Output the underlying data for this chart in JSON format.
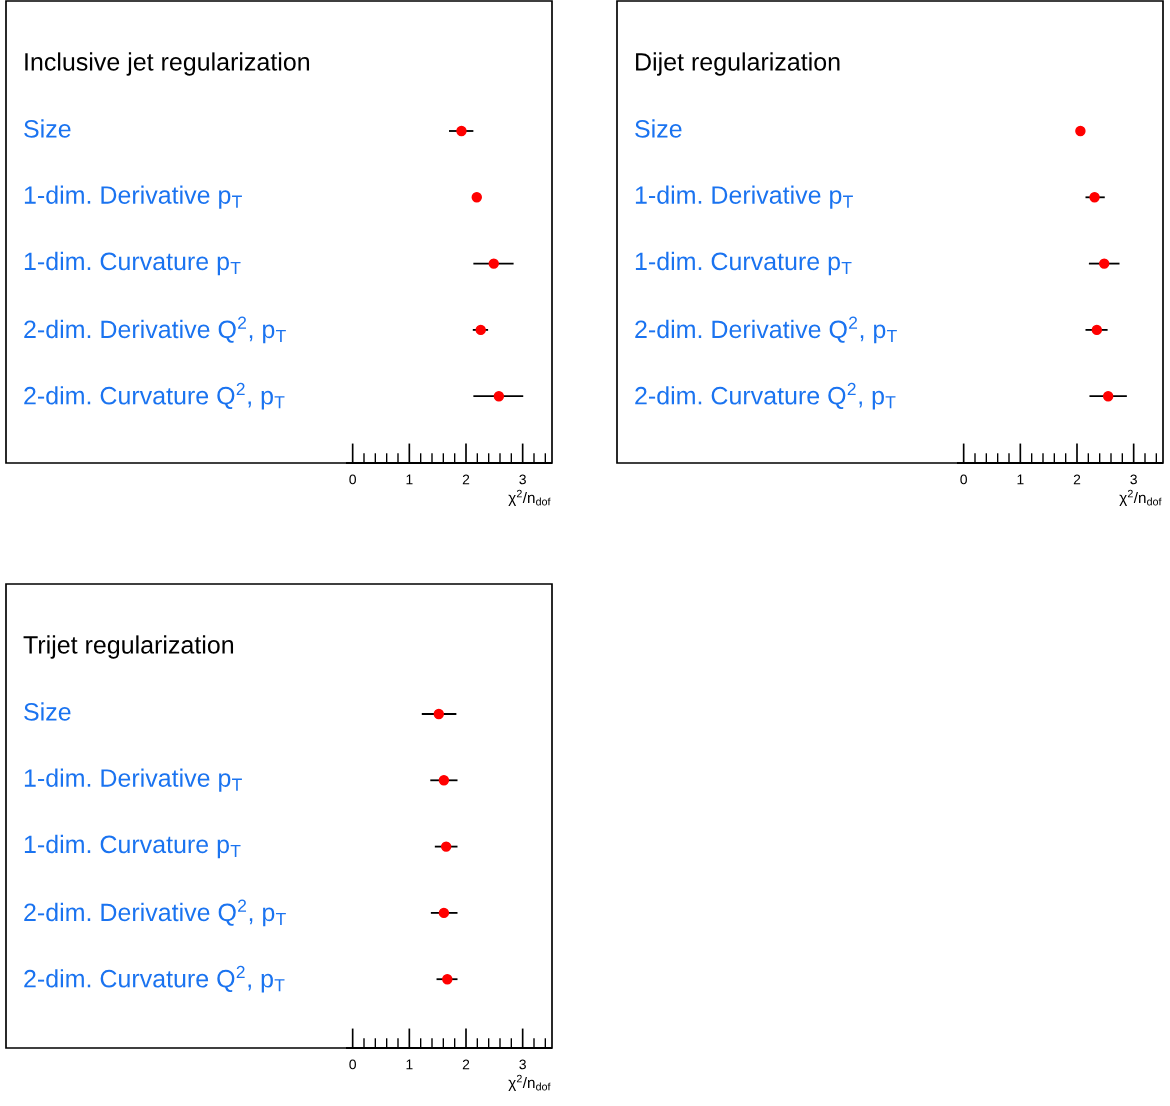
{
  "chart_data": [
    {
      "type": "scatter",
      "orientation": "horizontal",
      "title": "Inclusive jet regularization",
      "xlabel": "χ$^{2}$/n$_{dof}$",
      "categories": [
        "Size",
        "1-dim. Derivative p$_{T}$",
        "1-dim. Curvature p$_{T}$",
        "2-dim. Derivative Q$^{2}$, p$_{T}$",
        "2-dim. Curvature Q$^{2}$, p$_{T}$"
      ],
      "series": [
        {
          "color": "#ff0000",
          "values": [
            1.92,
            2.19,
            2.49,
            2.26,
            2.58
          ],
          "errors": [
            [
              1.7,
              2.13
            ],
            null,
            [
              2.13,
              2.84
            ],
            [
              2.12,
              2.39
            ],
            [
              2.13,
              3.01
            ]
          ]
        }
      ],
      "xlim": [
        -0.1,
        3.5
      ],
      "xticks": [
        0,
        1,
        2,
        3
      ],
      "marker": "circle",
      "grid": false
    },
    {
      "type": "scatter",
      "orientation": "horizontal",
      "title": "Dijet regularization",
      "xlabel": "χ$^{2}$/n$_{dof}$",
      "categories": [
        "Size",
        "1-dim. Derivative p$_{T}$",
        "1-dim. Curvature p$_{T}$",
        "2-dim. Derivative Q$^{2}$, p$_{T}$",
        "2-dim. Curvature Q$^{2}$, p$_{T}$"
      ],
      "series": [
        {
          "color": "#ff0000",
          "values": [
            2.06,
            2.31,
            2.48,
            2.35,
            2.55
          ],
          "errors": [
            null,
            [
              2.15,
              2.49
            ],
            [
              2.21,
              2.75
            ],
            [
              2.15,
              2.54
            ],
            [
              2.22,
              2.88
            ]
          ]
        }
      ],
      "xlim": [
        -0.1,
        3.5
      ],
      "xticks": [
        0,
        1,
        2,
        3
      ],
      "marker": "circle",
      "grid": false
    },
    {
      "type": "scatter",
      "orientation": "horizontal",
      "title": "Trijet regularization",
      "xlabel": "χ$^{2}$/n$_{dof}$",
      "categories": [
        "Size",
        "1-dim. Derivative p$_{T}$",
        "1-dim. Curvature p$_{T}$",
        "2-dim. Derivative Q$^{2}$, p$_{T}$",
        "2-dim. Curvature Q$^{2}$, p$_{T}$"
      ],
      "series": [
        {
          "color": "#ff0000",
          "values": [
            1.52,
            1.61,
            1.65,
            1.61,
            1.67
          ],
          "errors": [
            [
              1.22,
              1.83
            ],
            [
              1.37,
              1.85
            ],
            [
              1.45,
              1.85
            ],
            [
              1.38,
              1.85
            ],
            [
              1.48,
              1.85
            ]
          ]
        }
      ],
      "xlim": [
        -0.1,
        3.5
      ],
      "xticks": [
        0,
        1,
        2,
        3
      ],
      "marker": "circle",
      "grid": false
    }
  ]
}
